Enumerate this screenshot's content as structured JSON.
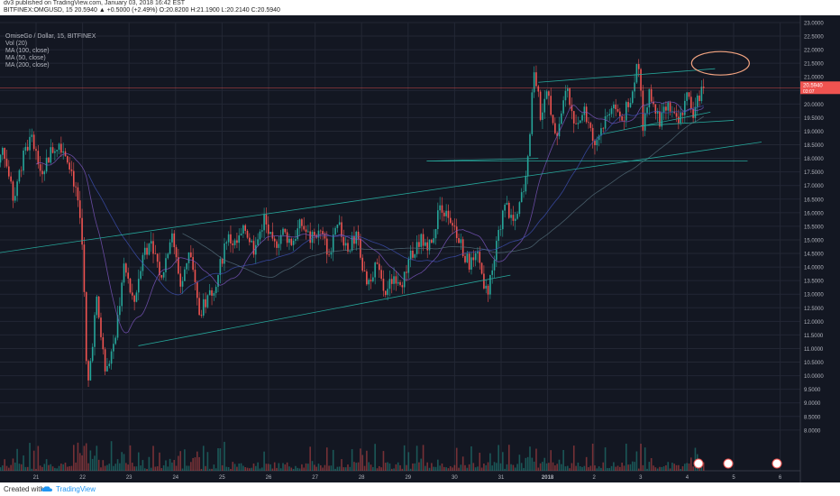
{
  "header": {
    "publish_line": "dv3 published on TradingView.com, January 03, 2018 16:42 EST",
    "symbol_line": "BITFINEX:OMGUSD, 15 20.5940 ▲ +0.5000 (+2.49%) O:20.8200 H:21.1900 L:20.2140 C:20.5940"
  },
  "legend": {
    "title": "OmiseGo / Dollar, 15, BITFINEX",
    "items": [
      "Vol (20)",
      "MA (100, close)",
      "MA (50, close)",
      "MA (200, close)"
    ]
  },
  "footer": {
    "created_with": "Created with",
    "brand": "TradingView"
  },
  "colors": {
    "background": "#131722",
    "up": "#26a69a",
    "down": "#ef5350",
    "trendline": "#26a69a",
    "ma": "#5c6bc0",
    "annotation": "#f4a582",
    "price_badge": "#ef5350"
  },
  "chart_data": {
    "type": "candlestick",
    "title": "OmiseGo / Dollar, 15, BITFINEX",
    "ylim": [
      6.5,
      23.0
    ],
    "y_ticks": [
      "23.0000",
      "22.5000",
      "22.0000",
      "21.5000",
      "21.0000",
      "20.5000",
      "20.0000",
      "19.5000",
      "19.0000",
      "18.5000",
      "18.0000",
      "17.5000",
      "17.0000",
      "16.5000",
      "16.0000",
      "15.5000",
      "15.0000",
      "14.5000",
      "14.0000",
      "13.5000",
      "13.0000",
      "12.5000",
      "12.0000",
      "11.5000",
      "11.0000",
      "10.5000",
      "10.0000",
      "9.5000",
      "9.0000",
      "8.5000",
      "8.0000"
    ],
    "x_ticks": [
      "21",
      "22",
      "23",
      "24",
      "25",
      "26",
      "27",
      "28",
      "29",
      "30",
      "31",
      "2018",
      "2",
      "3",
      "4",
      "5",
      "6"
    ],
    "x_range": [
      20.1,
      6.6
    ],
    "last_price": "20.5940",
    "last_price_sub": "03:07",
    "price_path": [
      [
        20.1,
        17.3
      ],
      [
        20.3,
        18.4
      ],
      [
        20.5,
        16.5
      ],
      [
        20.7,
        17.9
      ],
      [
        20.9,
        18.8
      ],
      [
        21.1,
        17.5
      ],
      [
        21.3,
        18.2
      ],
      [
        21.5,
        18.6
      ],
      [
        21.7,
        18.0
      ],
      [
        21.9,
        16.5
      ],
      [
        22.0,
        14.9
      ],
      [
        22.1,
        9.3
      ],
      [
        22.3,
        12.8
      ],
      [
        22.5,
        10.0
      ],
      [
        22.7,
        11.5
      ],
      [
        22.9,
        14.0
      ],
      [
        23.1,
        12.6
      ],
      [
        23.3,
        14.6
      ],
      [
        23.5,
        14.9
      ],
      [
        23.7,
        13.5
      ],
      [
        23.9,
        15.3
      ],
      [
        24.1,
        13.4
      ],
      [
        24.3,
        14.6
      ],
      [
        24.5,
        12.3
      ],
      [
        24.7,
        12.8
      ],
      [
        24.9,
        13.6
      ],
      [
        25.1,
        15.1
      ],
      [
        25.3,
        14.8
      ],
      [
        25.5,
        15.4
      ],
      [
        25.7,
        14.6
      ],
      [
        25.9,
        15.8
      ],
      [
        26.1,
        14.7
      ],
      [
        26.3,
        15.3
      ],
      [
        26.5,
        14.9
      ],
      [
        26.7,
        15.6
      ],
      [
        26.9,
        15.0
      ],
      [
        27.1,
        15.3
      ],
      [
        27.3,
        14.5
      ],
      [
        27.5,
        15.5
      ],
      [
        27.7,
        14.7
      ],
      [
        27.9,
        15.1
      ],
      [
        28.1,
        13.3
      ],
      [
        28.3,
        14.1
      ],
      [
        28.5,
        13.0
      ],
      [
        28.7,
        13.7
      ],
      [
        28.9,
        13.5
      ],
      [
        29.1,
        14.6
      ],
      [
        29.3,
        15.0
      ],
      [
        29.5,
        14.8
      ],
      [
        29.7,
        16.4
      ],
      [
        29.9,
        15.5
      ],
      [
        30.1,
        15.0
      ],
      [
        30.3,
        14.1
      ],
      [
        30.5,
        14.3
      ],
      [
        30.7,
        13.0
      ],
      [
        30.9,
        14.9
      ],
      [
        31.1,
        16.3
      ],
      [
        31.3,
        15.5
      ],
      [
        31.5,
        17.0
      ],
      [
        31.6,
        18.6
      ],
      [
        31.7,
        21.4
      ],
      [
        31.85,
        19.6
      ],
      [
        32.0,
        20.4
      ],
      [
        32.2,
        18.9
      ],
      [
        32.4,
        20.5
      ],
      [
        32.6,
        19.3
      ],
      [
        32.8,
        19.7
      ],
      [
        33.0,
        18.5
      ],
      [
        33.2,
        19.3
      ],
      [
        33.4,
        20.0
      ],
      [
        33.6,
        19.4
      ],
      [
        33.8,
        20.3
      ],
      [
        33.95,
        21.8
      ],
      [
        34.05,
        19.2
      ],
      [
        34.2,
        20.4
      ],
      [
        34.4,
        19.4
      ],
      [
        34.6,
        19.9
      ],
      [
        34.8,
        19.2
      ],
      [
        35.0,
        20.3
      ],
      [
        35.15,
        19.6
      ],
      [
        35.3,
        20.6
      ],
      [
        35.4,
        21.0
      ]
    ],
    "trendlines": [
      {
        "name": "long-support",
        "from": [
          20.1,
          14.5
        ],
        "to": [
          36.6,
          18.6
        ]
      },
      {
        "name": "lower-channel",
        "from": [
          23.2,
          11.1
        ],
        "to": [
          31.2,
          13.7
        ]
      },
      {
        "name": "upper-channel",
        "from": [
          31.8,
          20.8
        ],
        "to": [
          35.6,
          21.3
        ]
      },
      {
        "name": "mid-support-1",
        "from": [
          33.2,
          18.9
        ],
        "to": [
          35.5,
          19.7
        ]
      },
      {
        "name": "mid-support-2",
        "from": [
          34.0,
          19.2
        ],
        "to": [
          36.0,
          19.4
        ]
      },
      {
        "name": "horizontal-support",
        "from": [
          29.4,
          17.9
        ],
        "to": [
          36.3,
          17.9
        ]
      },
      {
        "name": "breakout-line",
        "from": [
          29.4,
          17.9
        ],
        "to": [
          31.8,
          18.0
        ]
      }
    ],
    "horizontal_line": 20.6,
    "annotation_circle": {
      "x": 35.6,
      "y": 21.5
    }
  }
}
